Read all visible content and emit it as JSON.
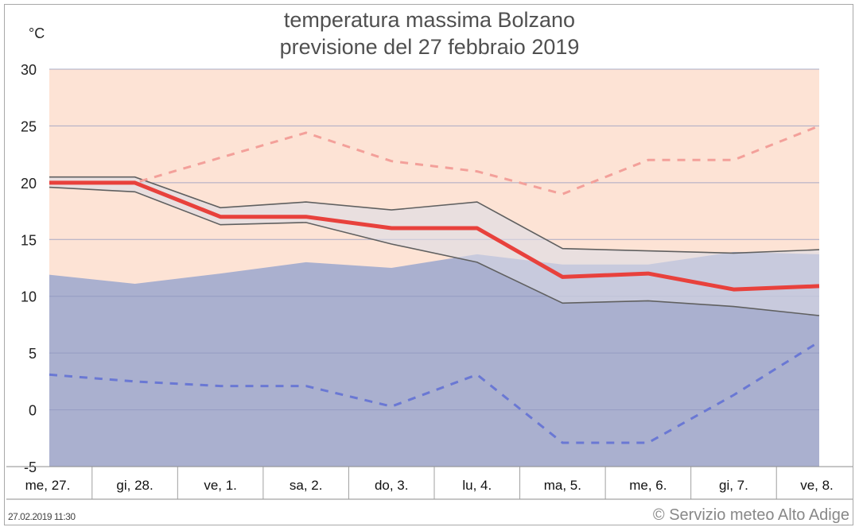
{
  "chart_data": {
    "type": "line",
    "title": "temperatura massima Bolzano",
    "subtitle": "previsione del 27 febbraio 2019",
    "ylabel": "°C",
    "ylim": [
      -5,
      30
    ],
    "yticks": [
      30,
      25,
      20,
      15,
      10,
      5,
      0,
      -5
    ],
    "categories": [
      "me, 27.",
      "gi, 28.",
      "ve, 1.",
      "sa, 2.",
      "do, 3.",
      "lu, 4.",
      "ma, 5.",
      "me, 6.",
      "gi, 7.",
      "ve, 8."
    ],
    "grid": true,
    "series": [
      {
        "role": "forecast",
        "values": [
          20,
          20,
          17,
          17,
          16,
          16,
          11.7,
          12,
          10.6,
          10.9
        ],
        "color": "#e8413c"
      },
      {
        "role": "range-upper",
        "values": [
          20.5,
          20.5,
          17.8,
          18.3,
          17.6,
          18.3,
          14.2,
          14,
          13.8,
          14.1
        ],
        "color": "#606060"
      },
      {
        "role": "range-lower",
        "values": [
          19.6,
          19.2,
          16.3,
          16.5,
          14.6,
          13,
          9.4,
          9.6,
          9.1,
          8.3
        ],
        "color": "#606060"
      },
      {
        "role": "record-max",
        "values": [
          20,
          20,
          22.2,
          24.4,
          21.9,
          21,
          19,
          22,
          22,
          25
        ],
        "color": "#f3a09a"
      },
      {
        "role": "record-min",
        "values": [
          3.1,
          2.5,
          2.1,
          2.1,
          0.3,
          3.1,
          -2.9,
          -2.9,
          1.3,
          6
        ],
        "color": "#6a78d4"
      },
      {
        "role": "climatology",
        "values": [
          11.9,
          11.1,
          12,
          13,
          12.5,
          13.7,
          12.8,
          12.8,
          13.9,
          13.7
        ],
        "color": "#aab0cf"
      }
    ]
  },
  "footer": {
    "timestamp": "27.02.2019 11:30",
    "credit": "© Servizio meteo Alto Adige"
  }
}
